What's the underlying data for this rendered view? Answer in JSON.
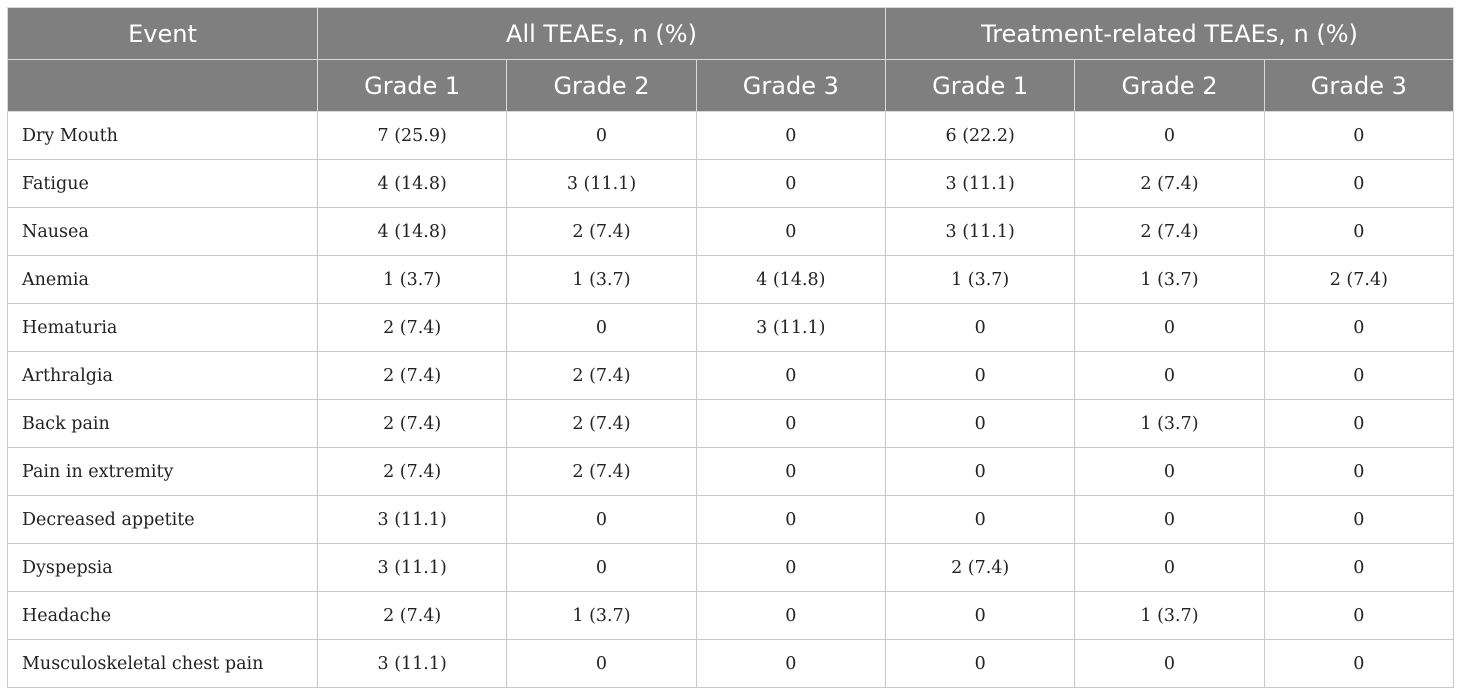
{
  "header": {
    "event_label": "Event",
    "group1_label": "All TEAEs, n (%)",
    "group2_label": "Treatment-related TEAEs, n (%)",
    "grades": [
      "Grade 1",
      "Grade 2",
      "Grade 3",
      "Grade 1",
      "Grade 2",
      "Grade 3"
    ]
  },
  "rows": [
    {
      "event": "Dry Mouth",
      "values": [
        "7 (25.9)",
        "0",
        "0",
        "6 (22.2)",
        "0",
        "0"
      ]
    },
    {
      "event": "Fatigue",
      "values": [
        "4 (14.8)",
        "3 (11.1)",
        "0",
        "3 (11.1)",
        "2 (7.4)",
        "0"
      ]
    },
    {
      "event": "Nausea",
      "values": [
        "4 (14.8)",
        "2 (7.4)",
        "0",
        "3 (11.1)",
        "2 (7.4)",
        "0"
      ]
    },
    {
      "event": "Anemia",
      "values": [
        "1 (3.7)",
        "1 (3.7)",
        "4 (14.8)",
        "1 (3.7)",
        "1 (3.7)",
        "2 (7.4)"
      ]
    },
    {
      "event": "Hematuria",
      "values": [
        "2 (7.4)",
        "0",
        "3 (11.1)",
        "0",
        "0",
        "0"
      ]
    },
    {
      "event": "Arthralgia",
      "values": [
        "2 (7.4)",
        "2 (7.4)",
        "0",
        "0",
        "0",
        "0"
      ]
    },
    {
      "event": "Back pain",
      "values": [
        "2 (7.4)",
        "2 (7.4)",
        "0",
        "0",
        "1 (3.7)",
        "0"
      ]
    },
    {
      "event": "Pain in extremity",
      "values": [
        "2 (7.4)",
        "2 (7.4)",
        "0",
        "0",
        "0",
        "0"
      ]
    },
    {
      "event": "Decreased appetite",
      "values": [
        "3 (11.1)",
        "0",
        "0",
        "0",
        "0",
        "0"
      ]
    },
    {
      "event": "Dyspepsia",
      "values": [
        "3 (11.1)",
        "0",
        "0",
        "2 (7.4)",
        "0",
        "0"
      ]
    },
    {
      "event": "Headache",
      "values": [
        "2 (7.4)",
        "1 (3.7)",
        "0",
        "0",
        "1 (3.7)",
        "0"
      ]
    },
    {
      "event": "Musculoskeletal chest pain",
      "values": [
        "3 (11.1)",
        "0",
        "0",
        "0",
        "0",
        "0"
      ]
    }
  ],
  "colors": {
    "header_bg": "#7f7f7f",
    "header_text": "#ffffff",
    "grid": "#c8c8c8"
  }
}
